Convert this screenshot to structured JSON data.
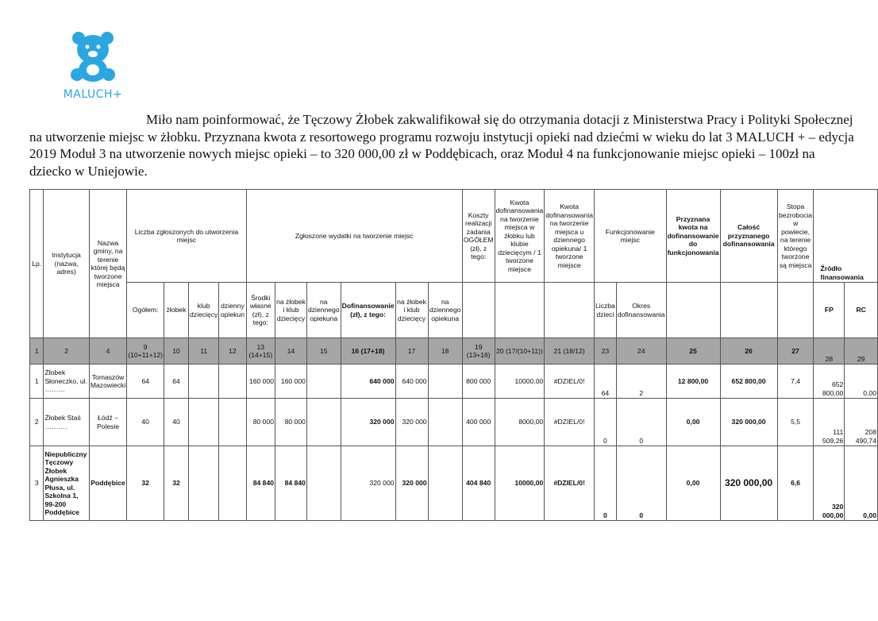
{
  "logo": {
    "text": "MALUCH+",
    "icon": "teddy-bear-icon",
    "color": "#2aa7e0"
  },
  "intro": "Miło nam poinformować, że Tęczowy Żłobek zakwalifikował się do otrzymania dotacji z Ministerstwa Pracy i Polityki Społecznej na utworzenie miejsc w żłobku. Przyznana kwota z resortowego programu rozwoju instytucji opieki nad dziećmi w wieku do lat 3 MALUCH + – edycja 2019 Moduł 3 na utworzenie nowych miejsc opieki – to 320 000,00 zł w Poddębicach, oraz Moduł 4 na funkcjonowanie miejsc opieki – 100zł na dziecko w Uniejowie.",
  "header": {
    "lp": "Lp.",
    "inst": "Instytucja (nazwa, adres)",
    "gmina": "Nazwa gminy, na terenie której będą tworzone miejsca",
    "liczba": "Liczba zgłoszonych do utworzenia miejsc",
    "wydatki": "Zgłoszone wydatki na tworzenie miejsc",
    "koszty": "Koszty realizacji zadania OGÓŁEM (zł), z tego:",
    "kwota1": "Kwota dofinansowania na tworzenie miejsca w żłobku lub klubie dziecięcym / 1 tworzone miejsce",
    "kwota2": "Kwota dofinansowania na tworzenie miejsca u dziennego opiekuna/ 1 tworzone miejsce",
    "funkcj": "Funkcjonowanie miejsc",
    "przyzn": "Przyznana kwota na dofinansowanie do funkcjonowania",
    "calosc": "Całość przyznanego dofinansowania",
    "stopa": "Stopa bezrobocia w powiecie, na terenie którego tworzone są miejsca",
    "zrodlo": "Źródło finansowania",
    "sub": [
      "Ogółem:",
      "żłobek",
      "klub dziecięcy",
      "dzienny opiekun",
      "Środki własne (zł), z tego:",
      "na żłobek i klub dziecięcy",
      "na dziennego opiekuna",
      "Dofinansowanie (zł), z tego:",
      "na żłobek i klub dziecięcy",
      "na dziennego opiekuna",
      "Liczba dzieci",
      "Okres dofinansowania",
      "FP",
      "RC"
    ],
    "nums": [
      "1",
      "2",
      "4",
      "9 (10+11+12)",
      "10",
      "11",
      "12",
      "13 (14+15)",
      "14",
      "15",
      "16 (17+18)",
      "17",
      "18",
      "19 (13+16)",
      "20 (17/(10+11))",
      "21 (18/12)",
      "23",
      "24",
      "25",
      "26",
      "27",
      "28",
      "29"
    ]
  },
  "rows": [
    {
      "lp": "1",
      "inst": "Żłobek Słoneczko, ul. ………",
      "gmina": "Tomaszów Mazowiecki",
      "ogolem": "64",
      "zlobek": "64",
      "klub": "",
      "dzienny": "",
      "srodki": "160 000",
      "sr_zk": "160 000",
      "sr_do": "",
      "dofin": "640 000",
      "do_zk": "640 000",
      "do_do": "",
      "koszty": "800 000",
      "kwota1": "10000,00",
      "kwota2": "#DZIEL/0!",
      "dzieci": "64",
      "okres": "2",
      "przyzn": "12 800,00",
      "calosc": "652 800,00",
      "stopa": "7,4",
      "fp": "652 800,00",
      "rc": "0,00"
    },
    {
      "lp": "2",
      "inst": "Żłobek Staś ……….",
      "gmina": "Łódź – Polesie",
      "ogolem": "40",
      "zlobek": "40",
      "klub": "",
      "dzienny": "",
      "srodki": "80 000",
      "sr_zk": "80 000",
      "sr_do": "",
      "dofin": "320 000",
      "do_zk": "320 000",
      "do_do": "",
      "koszty": "400 000",
      "kwota1": "8000,00",
      "kwota2": "#DZIEL/0!",
      "dzieci": "0",
      "okres": "0",
      "przyzn": "0,00",
      "calosc": "320 000,00",
      "stopa": "5,5",
      "fp": "111 509,26",
      "rc": "208 490,74"
    },
    {
      "lp": "3",
      "inst": "Niepubliczny Tęczowy Żłobek Agnieszka Płusa, ul. Szkolna 1, 99-200 Poddębice",
      "gmina": "Poddębice",
      "ogolem": "32",
      "zlobek": "32",
      "klub": "",
      "dzienny": "",
      "srodki": "84 840",
      "sr_zk": "84 840",
      "sr_do": "",
      "dofin": "320 000",
      "do_zk": "320 000",
      "do_do": "",
      "koszty": "404 840",
      "kwota1": "10000,00",
      "kwota2": "#DZIEL/0!",
      "dzieci": "0",
      "okres": "0",
      "przyzn": "0,00",
      "calosc": "320 000,00",
      "stopa": "6,6",
      "fp": "320 000,00",
      "rc": "0,00"
    }
  ]
}
